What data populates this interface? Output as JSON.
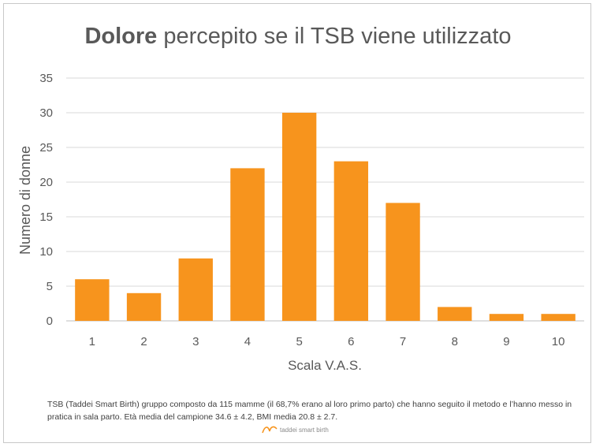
{
  "chart_data": {
    "type": "bar",
    "title_bold": "Dolore",
    "title_rest": " percepito se il TSB viene utilizzato",
    "xlabel": "Scala V.A.S.",
    "ylabel": "Numero di donne",
    "categories": [
      "1",
      "2",
      "3",
      "4",
      "5",
      "6",
      "7",
      "8",
      "9",
      "10"
    ],
    "values": [
      6,
      4,
      9,
      22,
      30,
      23,
      17,
      2,
      1,
      1
    ],
    "ylim": [
      0,
      35
    ],
    "yticks": [
      0,
      5,
      10,
      15,
      20,
      25,
      30,
      35
    ],
    "grid": true,
    "bar_color": "#F7941D"
  },
  "footnote": "TSB (Taddei Smart Birth) gruppo composto da 115 mamme (il 68,7% erano al loro primo parto) che hanno seguito il metodo e l’hanno messo in pratica in sala parto. Età media del campione 34.6 ± 4.2, BMI media 20.8 ± 2.7.",
  "logo_text": "taddei smart birth",
  "colors": {
    "bar": "#F7941D",
    "text": "#595959",
    "grid": "#d9d9d9"
  }
}
